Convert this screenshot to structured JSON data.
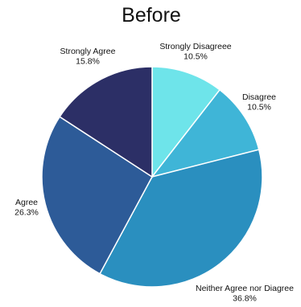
{
  "chart_data": {
    "type": "pie",
    "title": "Before",
    "slices": [
      {
        "label": "Strongly Disagreee",
        "value": 10.5,
        "value_label": "10.5%",
        "color": "#6ee4ea"
      },
      {
        "label": "Disagree",
        "value": 10.5,
        "value_label": "10.5%",
        "color": "#3fb5d7"
      },
      {
        "label": "Neither Agree nor Diagree",
        "value": 36.8,
        "value_label": "36.8%",
        "color": "#2a8fbf"
      },
      {
        "label": "Agree",
        "value": 26.3,
        "value_label": "26.3%",
        "color": "#2d5b98"
      },
      {
        "label": "Strongly Agree",
        "value": 15.8,
        "value_label": "15.8%",
        "color": "#2c2f66"
      }
    ],
    "start_angle": "12 o'clock",
    "direction": "clockwise",
    "legend": "none"
  }
}
